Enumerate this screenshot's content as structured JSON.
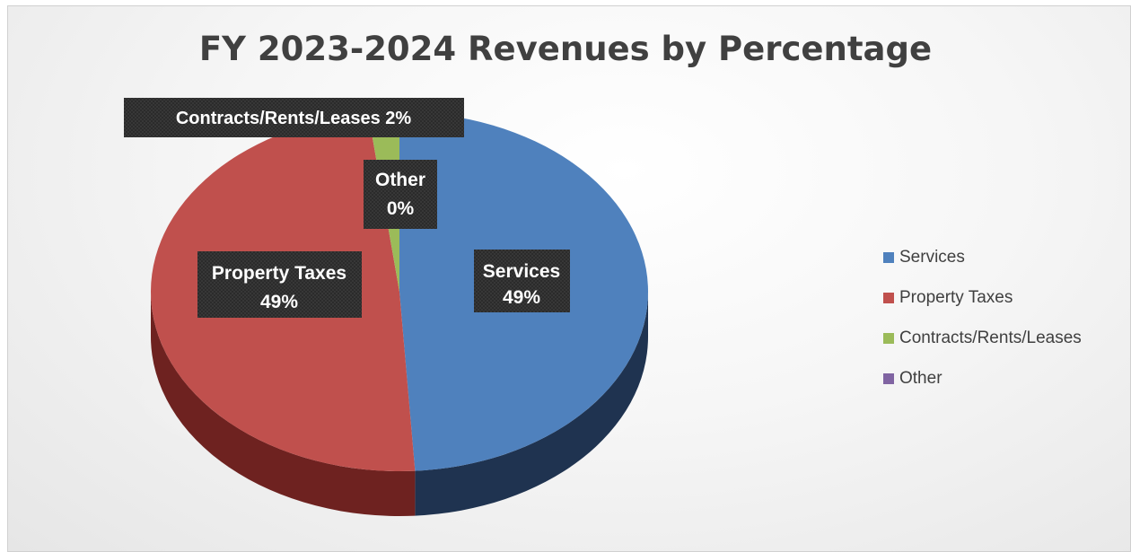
{
  "chart_data": {
    "type": "pie",
    "title": "FY 2023-2024 Revenues by Percentage",
    "slices": [
      {
        "name": "Services",
        "value": 49,
        "label_name": "Services",
        "label_pct": "49%",
        "color": "#4f81bd",
        "side_color": "#1f3350"
      },
      {
        "name": "Property Taxes",
        "value": 49,
        "label_name": "Property Taxes",
        "label_pct": "49%",
        "color": "#c0504d",
        "side_color": "#6e2220"
      },
      {
        "name": "Contracts/Rents/Leases",
        "value": 2,
        "label_name": "Contracts/Rents/Leases",
        "label_pct": "2%",
        "color": "#9bbb59",
        "side_color": "#4f5f2c"
      },
      {
        "name": "Other",
        "value": 0,
        "label_name": "Other",
        "label_pct": "0%",
        "color": "#8064a2",
        "side_color": "#403250"
      }
    ],
    "legend": {
      "placement": "right",
      "items": [
        "Services",
        "Property Taxes",
        "Contracts/Rents/Leases",
        "Other"
      ]
    }
  }
}
